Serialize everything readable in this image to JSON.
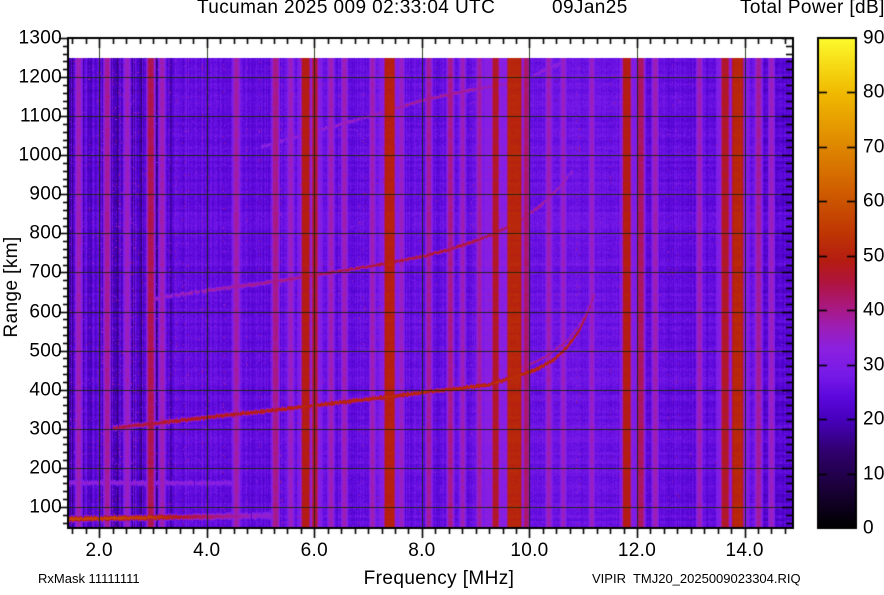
{
  "chart_data": {
    "type": "heatmap",
    "header": {
      "title": "Tucuman 2025 009 02:33:04 UTC",
      "date": "09Jan25",
      "colorbar_title": "Total Power [dB]"
    },
    "xlabel": "Frequency [MHz]",
    "ylabel": "Range [km]",
    "footer": {
      "left": "RxMask 11111111",
      "right": "VIPIR  TMJ20_2025009023304.RIQ"
    },
    "x_axis": {
      "unit": "MHz",
      "min": 1.42,
      "max": 14.9,
      "minor_step": 0.25,
      "tick_values": [
        2,
        4,
        6,
        8,
        10,
        12,
        14
      ],
      "tick_labels": [
        "2.0",
        "4.0",
        "6.0",
        "8.0",
        "10.0",
        "12.0",
        "14.0"
      ]
    },
    "y_axis": {
      "unit": "km",
      "min": 46,
      "max": 1300,
      "minor_step": 20,
      "tick_values": [
        100,
        200,
        300,
        400,
        500,
        600,
        700,
        800,
        900,
        1000,
        1100,
        1200,
        1300
      ],
      "tick_labels": [
        "100",
        "200",
        "300",
        "400",
        "500",
        "600",
        "700",
        "800",
        "900",
        "1000",
        "1100",
        "1200",
        "1300"
      ]
    },
    "colorbar": {
      "unit": "dB",
      "min": 0,
      "max": 90,
      "tick_values": [
        0,
        10,
        20,
        30,
        40,
        50,
        60,
        70,
        80,
        90
      ],
      "tick_labels": [
        "0",
        "10",
        "20",
        "30",
        "40",
        "50",
        "60",
        "70",
        "80",
        "90"
      ],
      "stops": [
        [
          0,
          "#000000"
        ],
        [
          7,
          "#1a0037"
        ],
        [
          14,
          "#30006e"
        ],
        [
          20,
          "#4800be"
        ],
        [
          24,
          "#5c08dc"
        ],
        [
          28,
          "#761ae8"
        ],
        [
          33,
          "#8c20e0"
        ],
        [
          37,
          "#9e1eb4"
        ],
        [
          41,
          "#aa187a"
        ],
        [
          45,
          "#af1440"
        ],
        [
          49,
          "#b41c12"
        ],
        [
          55,
          "#c03a02"
        ],
        [
          62,
          "#d05e00"
        ],
        [
          70,
          "#de8600"
        ],
        [
          80,
          "#f0ba00"
        ],
        [
          90,
          "#fcfa2d"
        ]
      ]
    },
    "grid": {
      "color": "rgba(22,36,6,0.85)",
      "x_step_mhz": 2,
      "y_step_km": 100
    },
    "background": {
      "data_top_km": 1248,
      "noise_seed": 20250109,
      "regions": [
        {
          "fmax": 3.35,
          "db": 23.2,
          "stripe": 5.5,
          "speckle": 0.55,
          "rowmul": 1.0
        },
        {
          "fmax": 5.6,
          "db": 25.0,
          "stripe": 2.4,
          "speckle": 0.18,
          "rowmul": 1.0
        },
        {
          "fmax": 9.8,
          "db": 25.4,
          "stripe": 1.9,
          "speckle": 0.12,
          "rowmul": 1.0
        },
        {
          "fmax": 11.65,
          "db": 26.2,
          "stripe": 1.2,
          "speckle": 0.05,
          "rowmul": 1.1
        },
        {
          "fmax": 14.35,
          "db": 25.0,
          "stripe": 1.9,
          "speckle": 0.08,
          "rowmul": 1.2
        },
        {
          "fmax": 14.9,
          "db": 23.3,
          "stripe": 1.4,
          "speckle": 0.0,
          "rowmul": 1.9
        }
      ]
    },
    "rfi_bands": [
      {
        "f": 5.92,
        "w": 0.4,
        "db": 31
      },
      {
        "f": 7.4,
        "w": 0.34,
        "db": 31
      },
      {
        "f": 9.55,
        "w": 0.75,
        "db": 32
      },
      {
        "f": 13.78,
        "w": 0.55,
        "db": 31
      },
      {
        "f": 11.85,
        "w": 0.3,
        "db": 30
      },
      {
        "f": 1.62,
        "w": 0.05,
        "db": 37
      },
      {
        "f": 2.15,
        "w": 0.06,
        "db": 39
      },
      {
        "f": 2.52,
        "w": 0.05,
        "db": 36
      },
      {
        "f": 2.96,
        "w": 0.08,
        "db": 44
      },
      {
        "f": 3.17,
        "w": 0.05,
        "db": 37
      },
      {
        "f": 4.55,
        "w": 0.06,
        "db": 38
      },
      {
        "f": 5.28,
        "w": 0.07,
        "db": 40
      },
      {
        "f": 5.56,
        "w": 0.05,
        "db": 36
      },
      {
        "f": 5.84,
        "w": 0.11,
        "db": 49
      },
      {
        "f": 6.01,
        "w": 0.07,
        "db": 46
      },
      {
        "f": 6.31,
        "w": 0.05,
        "db": 37
      },
      {
        "f": 6.56,
        "w": 0.05,
        "db": 37
      },
      {
        "f": 7.08,
        "w": 0.05,
        "db": 37
      },
      {
        "f": 7.4,
        "w": 0.15,
        "db": 50
      },
      {
        "f": 7.62,
        "w": 0.04,
        "db": 36
      },
      {
        "f": 8.13,
        "w": 0.05,
        "db": 39
      },
      {
        "f": 8.53,
        "w": 0.06,
        "db": 40
      },
      {
        "f": 8.76,
        "w": 0.04,
        "db": 37
      },
      {
        "f": 9.07,
        "w": 0.05,
        "db": 38
      },
      {
        "f": 9.37,
        "w": 0.08,
        "db": 47
      },
      {
        "f": 9.72,
        "w": 0.22,
        "db": 51
      },
      {
        "f": 9.94,
        "w": 0.06,
        "db": 42
      },
      {
        "f": 10.36,
        "w": 0.05,
        "db": 37
      },
      {
        "f": 10.63,
        "w": 0.04,
        "db": 36
      },
      {
        "f": 11.16,
        "w": 0.04,
        "db": 36
      },
      {
        "f": 11.81,
        "w": 0.11,
        "db": 49
      },
      {
        "f": 12.07,
        "w": 0.08,
        "db": 43
      },
      {
        "f": 12.34,
        "w": 0.05,
        "db": 37
      },
      {
        "f": 13.16,
        "w": 0.05,
        "db": 37
      },
      {
        "f": 13.64,
        "w": 0.1,
        "db": 47
      },
      {
        "f": 13.87,
        "w": 0.17,
        "db": 51
      },
      {
        "f": 14.26,
        "w": 0.06,
        "db": 39
      },
      {
        "f": 14.5,
        "w": 0.05,
        "db": 36
      }
    ],
    "traces": [
      {
        "name": "e-region-streak",
        "width": 5,
        "points": [
          [
            1.42,
            70,
            58
          ],
          [
            2.2,
            72,
            58
          ],
          [
            3.0,
            74,
            56
          ],
          [
            3.6,
            75,
            46
          ],
          [
            4.3,
            77,
            40
          ],
          [
            5.2,
            79,
            34
          ]
        ]
      },
      {
        "name": "e-region-faint",
        "width": 3,
        "points": [
          [
            1.42,
            163,
            34
          ],
          [
            2.5,
            163,
            35
          ],
          [
            3.6,
            162,
            34
          ],
          [
            4.5,
            162,
            32
          ]
        ]
      },
      {
        "name": "f-layer-1hop",
        "width": 4,
        "points": [
          [
            2.25,
            303,
            44
          ],
          [
            3,
            315,
            47
          ],
          [
            4,
            330,
            49
          ],
          [
            5,
            345,
            50
          ],
          [
            6,
            361,
            51
          ],
          [
            7,
            377,
            52
          ],
          [
            8,
            394,
            52
          ],
          [
            8.6,
            403,
            52
          ],
          [
            9.2,
            413,
            53
          ],
          [
            9.7,
            433,
            53
          ],
          [
            10.1,
            452,
            53
          ],
          [
            10.45,
            478,
            52
          ],
          [
            10.7,
            512,
            51
          ],
          [
            10.9,
            550,
            49
          ],
          [
            11.05,
            590,
            45
          ],
          [
            11.2,
            645,
            40
          ]
        ]
      },
      {
        "name": "f-layer-1hop-x",
        "width": 2,
        "points": [
          [
            9.55,
            446,
            40
          ],
          [
            9.95,
            463,
            41
          ],
          [
            10.35,
            490,
            41
          ],
          [
            10.7,
            527,
            40
          ],
          [
            10.95,
            573,
            39
          ],
          [
            11.15,
            630,
            37
          ]
        ]
      },
      {
        "name": "f-layer-2hop",
        "width": 3,
        "points": [
          [
            2.95,
            633,
            36
          ],
          [
            4,
            655,
            38
          ],
          [
            5,
            673,
            40
          ],
          [
            6,
            694,
            42
          ],
          [
            7,
            716,
            46
          ],
          [
            8,
            742,
            47
          ],
          [
            8.7,
            768,
            47
          ],
          [
            9.3,
            798,
            45
          ],
          [
            9.8,
            832,
            42
          ],
          [
            10.2,
            872,
            40
          ],
          [
            10.55,
            920,
            38
          ],
          [
            10.8,
            962,
            36
          ]
        ]
      },
      {
        "name": "f-layer-3hop",
        "width": 2.5,
        "points": [
          [
            5.0,
            1022,
            33
          ],
          [
            6.0,
            1062,
            35
          ],
          [
            7.0,
            1100,
            37
          ],
          [
            7.9,
            1138,
            40
          ],
          [
            8.6,
            1160,
            40
          ],
          [
            9.5,
            1183,
            37
          ],
          [
            10.0,
            1202,
            35
          ],
          [
            10.6,
            1238,
            33
          ]
        ]
      }
    ]
  }
}
